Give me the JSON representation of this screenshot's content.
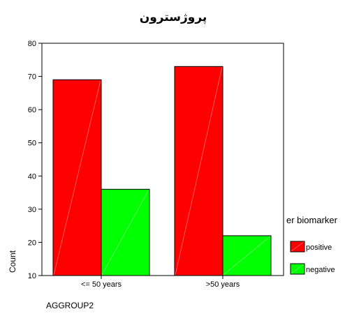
{
  "chart_data": {
    "type": "bar",
    "title": "پروژسترون",
    "xlabel": "AGGROUP2",
    "ylabel": "Count",
    "categories": [
      "<= 50 years",
      ">50 years"
    ],
    "series": [
      {
        "name": "positive",
        "values": [
          69,
          73
        ],
        "color": "#ff0000"
      },
      {
        "name": "negative",
        "values": [
          36,
          22
        ],
        "color": "#00ff00"
      }
    ],
    "ylim": [
      10,
      80
    ],
    "yticks": [
      10,
      20,
      30,
      40,
      50,
      60,
      70,
      80
    ],
    "legend": {
      "title": "er biomarker",
      "placement": "right"
    },
    "grid": false
  }
}
